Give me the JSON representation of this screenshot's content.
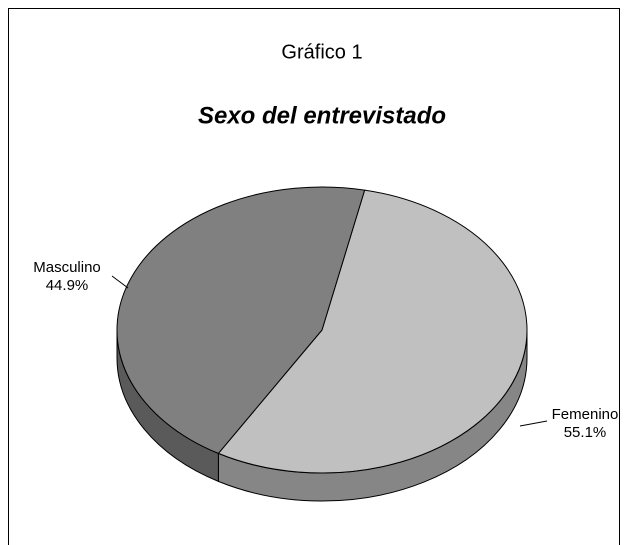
{
  "chart_data": {
    "type": "pie",
    "title": "Gráfico 1",
    "subtitle": "Sexo del entrevistado",
    "categories": [
      "Masculino",
      "Femenino"
    ],
    "values": [
      44.9,
      55.1
    ],
    "value_labels": [
      "44.9%",
      "55.1%"
    ],
    "colors": [
      "#808080",
      "#c0c0c0"
    ]
  }
}
